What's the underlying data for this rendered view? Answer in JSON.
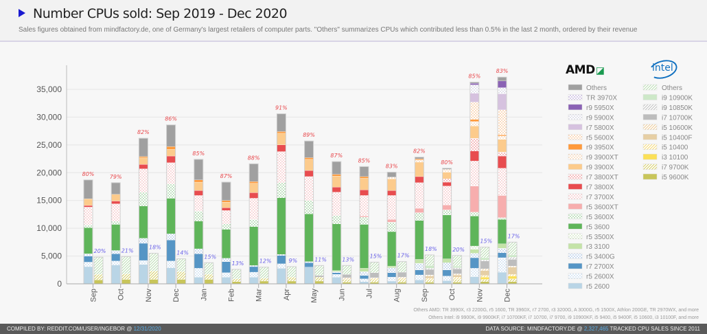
{
  "header": {
    "title": "Number CPUs sold: Sep 2019 - Dec 2020",
    "subtitle": "Sales figures obtained from mindfactory.de, one of Germany's largest retailers of computer parts. \"Others\" summarizes CPUs which contributed less than 0.5% in the last 2 month, ordered by their revenue"
  },
  "logos": {
    "amd": "AMD",
    "intel": "intel"
  },
  "notes": {
    "others_amd": "Others AMD: TR 3990X, r3 2200G, r5 1600, TR 3960X, r7 2700, r3 3200G, A 3000G, r5 1500X, Athlon 200GE, TR 2970WX, and more",
    "others_intel": "Others Intel: i9 9900K, i9 9900KF, i7 10700KF, i7 10700, i7 9700, i9 10900KF, i5 9400, i5 9400F, i5 10600, i3 10100F, and more"
  },
  "footer": {
    "compiled_prefix": "COMPILED BY: REDDIT.COM/USER/INGEBOR @",
    "compiled_date": "12/31/2020",
    "source_prefix": "DATA SOURCE: MINDFACTORY.DE @",
    "tracked_count": "2,327,465",
    "source_suffix": "TRACKED CPU SALES SINCE 2011"
  },
  "colors": {
    "amd_share": "#e8484c",
    "intel_share": "#6a62e8"
  },
  "chart_data": {
    "type": "bar",
    "stacked": true,
    "title": "Number CPUs sold: Sep 2019 - Dec 2020",
    "ylim": [
      0,
      37500
    ],
    "yticks": [
      {
        "v": 0,
        "label": "0"
      },
      {
        "v": 5000,
        "label": "5,000"
      },
      {
        "v": 10000,
        "label": "10,000"
      },
      {
        "v": 15000,
        "label": "15,000"
      },
      {
        "v": 20000,
        "label": "20,000"
      },
      {
        "v": 25000,
        "label": "25,000"
      },
      {
        "v": 30000,
        "label": "30,000"
      },
      {
        "v": 35000,
        "label": "35,000"
      }
    ],
    "grid": true,
    "legend_placement": "right",
    "amd_legend": [
      {
        "name": "Others",
        "color": "#a0a0a0",
        "pattern": "solid"
      },
      {
        "name": "TR 3970X",
        "color": "#9b7fc8",
        "pattern": "dots"
      },
      {
        "name": "r9 5950X",
        "color": "#8a62b4",
        "pattern": "solid"
      },
      {
        "name": "r9 5900X",
        "color": "#b8b8d0",
        "pattern": "dots"
      },
      {
        "name": "r7 5800X",
        "color": "#d6c2df",
        "pattern": "solid"
      },
      {
        "name": "r5 5600X",
        "color": "#f5a860",
        "pattern": "dots"
      },
      {
        "name": "r9 3950X",
        "color": "#ff9a3c",
        "pattern": "solid"
      },
      {
        "name": "r9 3900XT",
        "color": "#f2b880",
        "pattern": "dots"
      },
      {
        "name": "r9 3900X",
        "color": "#fccb8c",
        "pattern": "solid"
      },
      {
        "name": "r7 3800XT",
        "color": "#e85a5e",
        "pattern": "dots"
      },
      {
        "name": "r7 3800X",
        "color": "#e84c4f",
        "pattern": "solid"
      },
      {
        "name": "r7 3700X",
        "color": "#f0a0a4",
        "pattern": "dots"
      },
      {
        "name": "r5 3600XT",
        "color": "#f7aeae",
        "pattern": "solid"
      },
      {
        "name": "r5 3600X",
        "color": "#6cb86a",
        "pattern": "dots"
      },
      {
        "name": "r5 3600",
        "color": "#5fb55a",
        "pattern": "solid"
      },
      {
        "name": "r5 3500X",
        "color": "#b8d8a0",
        "pattern": "dots"
      },
      {
        "name": "r3 3100",
        "color": "#c4e3a8",
        "pattern": "solid"
      },
      {
        "name": "r5 3400G",
        "color": "#80a8d8",
        "pattern": "dots"
      },
      {
        "name": "r7 2700X",
        "color": "#5595c5",
        "pattern": "solid"
      },
      {
        "name": "r5 2600X",
        "color": "#a8c8e8",
        "pattern": "dots"
      },
      {
        "name": "r5 2600",
        "color": "#b9d5e6",
        "pattern": "solid"
      }
    ],
    "intel_legend": [
      {
        "name": "Others",
        "color": "#b8dcb0",
        "pattern": "hatch"
      },
      {
        "name": "i9 10900K",
        "color": "#cde8c8",
        "pattern": "solid"
      },
      {
        "name": "i9 10850K",
        "color": "#bdbdbd",
        "pattern": "hatch"
      },
      {
        "name": "i7 10700K",
        "color": "#bdbdbd",
        "pattern": "solid"
      },
      {
        "name": "i5 10600K",
        "color": "#ecc890",
        "pattern": "hatch"
      },
      {
        "name": "i5 10400F",
        "color": "#e6cfa5",
        "pattern": "solid"
      },
      {
        "name": "i5 10400",
        "color": "#f5d870",
        "pattern": "hatch"
      },
      {
        "name": "i3 10100",
        "color": "#fbe058",
        "pattern": "solid"
      },
      {
        "name": "i7 9700K",
        "color": "#d4cc60",
        "pattern": "hatch"
      },
      {
        "name": "i5 9600K",
        "color": "#c8c55a",
        "pattern": "solid"
      }
    ],
    "months": [
      {
        "label": "Sep",
        "amd_share": "80%",
        "intel_share": "20%",
        "amd": {
          "r5 2600": 3100,
          "r5 2600X": 800,
          "r7 2700X": 1100,
          "r5 3400G": 400,
          "r5 3600": 4700,
          "r5 3600X": 500,
          "r7 3700X": 3200,
          "r7 3800X": 300,
          "r9 3900X": 1200,
          "Others": 3400
        },
        "intel": {
          "i5 9600K": 700,
          "i7 9700K": 1000,
          "Others": 3100
        }
      },
      {
        "label": "Oct",
        "amd_share": "79%",
        "intel_share": "21%",
        "amd": {
          "r5 2600": 3400,
          "r5 2600X": 700,
          "r7 2700X": 1300,
          "r5 3400G": 600,
          "r5 3600": 4700,
          "r5 3600X": 600,
          "r7 3700X": 3100,
          "r7 3800X": 500,
          "r9 3900X": 1200,
          "Others": 2100
        },
        "intel": {
          "i5 9600K": 800,
          "i7 9700K": 1000,
          "Others": 3100
        }
      },
      {
        "label": "Nov",
        "amd_share": "82%",
        "intel_share": "18%",
        "amd": {
          "r5 2600": 3500,
          "r5 2600X": 700,
          "r7 2700X": 3100,
          "r5 3400G": 900,
          "r5 3600": 5800,
          "r5 3600X": 2500,
          "r7 3700X": 4200,
          "r7 3800X": 800,
          "r9 3900X": 1200,
          "r9 3950X": 200,
          "Others": 3300
        },
        "intel": {
          "i5 9600K": 800,
          "i7 9700K": 1500,
          "Others": 3200
        }
      },
      {
        "label": "Dec",
        "amd_share": "86%",
        "intel_share": "14%",
        "amd": {
          "r5 2600": 2900,
          "r5 2600X": 1200,
          "r7 2700X": 3800,
          "r5 3400G": 1100,
          "r5 3600": 6400,
          "r5 3600X": 2600,
          "r7 3700X": 3800,
          "r7 3800X": 1200,
          "r9 3900X": 1200,
          "r9 3950X": 500,
          "Others": 3900
        },
        "intel": {
          "i5 9600K": 800,
          "i7 9700K": 1400,
          "Others": 2300
        }
      },
      {
        "label": "Jan",
        "amd_share": "85%",
        "intel_share": "15%",
        "amd": {
          "r5 2600": 1200,
          "r5 2600X": 1600,
          "r7 2700X": 2600,
          "r5 3400G": 900,
          "r5 3600": 5000,
          "r5 3600X": 1800,
          "r7 3700X": 2800,
          "r7 3800X": 900,
          "r9 3900X": 1500,
          "r9 3950X": 400,
          "Others": 3700
        },
        "intel": {
          "i5 9600K": 800,
          "i7 9700K": 900,
          "Others": 2100
        }
      },
      {
        "label": "Feb",
        "amd_share": "87%",
        "intel_share": "13%",
        "amd": {
          "r5 2600": 1200,
          "r5 2600X": 800,
          "r7 2700X": 2000,
          "r5 3400G": 600,
          "r5 3600": 5200,
          "r5 3600X": 1000,
          "r7 3700X": 2400,
          "r7 3800X": 500,
          "r9 3900X": 1000,
          "r9 3950X": 300,
          "Others": 3300
        },
        "intel": {
          "i5 9600K": 400,
          "i7 9700K": 500,
          "Others": 1700
        }
      },
      {
        "label": "Mar",
        "amd_share": "88%",
        "intel_share": "12%",
        "amd": {
          "r5 2600": 1200,
          "r5 2600X": 900,
          "r7 2700X": 1000,
          "r5 3400G": 200,
          "r5 3600": 7000,
          "r5 3600X": 1300,
          "r7 3700X": 3800,
          "r7 3800X": 1000,
          "r9 3900X": 1700,
          "r9 3950X": 300,
          "Others": 3200
        },
        "intel": {
          "i5 9600K": 500,
          "i7 9700K": 500,
          "Others": 2000
        }
      },
      {
        "label": "Apr",
        "amd_share": "91%",
        "intel_share": "9%",
        "amd": {
          "r5 2600": 2800,
          "r5 2600X": 800,
          "r7 2700X": 1500,
          "r5 3400G": 200,
          "r5 3600": 10200,
          "r5 3600X": 2700,
          "r7 3700X": 5600,
          "r7 3800X": 1200,
          "r9 3900X": 2100,
          "r9 3950X": 300,
          "Others": 3200
        },
        "intel": {
          "i5 9600K": 500,
          "i7 9700K": 700,
          "Others": 1900
        }
      },
      {
        "label": "May",
        "amd_share": "89%",
        "intel_share": "11%",
        "amd": {
          "r5 2600": 3000,
          "r7 2700X": 800,
          "r5 3400G": 200,
          "r5 3600": 8600,
          "r5 3600X": 2400,
          "r7 3700X": 4300,
          "r7 3800X": 1100,
          "r9 3900X": 2000,
          "r9 3950X": 300,
          "Others": 3000
        },
        "intel": {
          "i5 9600K": 500,
          "i7 9700K": 700,
          "i7 10700K": 300,
          "Others": 1800
        }
      },
      {
        "label": "Jun",
        "amd_share": "87%",
        "intel_share": "13%",
        "amd": {
          "r5 2600": 1200,
          "r5 2600X": 500,
          "r7 2700X": 300,
          "r5 3400G": 200,
          "r3 3100": 200,
          "r5 3600": 8400,
          "r5 3600X": 1500,
          "r7 3700X": 4200,
          "r7 3800X": 900,
          "r9 3900X": 2000,
          "r9 3950X": 300,
          "Others": 2300
        },
        "intel": {
          "i5 9600K": 300,
          "i7 9700K": 500,
          "i5 10600K": 300,
          "i7 10700K": 600,
          "Others": 1600
        }
      },
      {
        "label": "Jul",
        "amd_share": "85%",
        "intel_share": "15%",
        "amd": {
          "r5 2600": 400,
          "r5 2600X": 500,
          "r7 2700X": 600,
          "r5 3400G": 700,
          "r3 3100": 600,
          "r5 3600": 7900,
          "r5 3600X": 1300,
          "r5 3600XT": 200,
          "r7 3700X": 3700,
          "r7 3800X": 1000,
          "r9 3900X": 2100,
          "r9 3950X": 300,
          "Others": 1800
        },
        "intel": {
          "i5 9600K": 300,
          "i7 9700K": 400,
          "i5 10400": 300,
          "i5 10600K": 100,
          "i7 10700K": 900,
          "Others": 1900
        }
      },
      {
        "label": "Aug",
        "amd_share": "83%",
        "intel_share": "17%",
        "amd": {
          "r5 2600": 500,
          "r5 2600X": 700,
          "r7 2700X": 800,
          "r5 3400G": 900,
          "r3 3100": 300,
          "r5 3600": 6200,
          "r5 3600X": 1700,
          "r5 3600XT": 500,
          "r7 3700X": 4300,
          "r7 3800X": 900,
          "r9 3900X": 2100,
          "r9 3900XT": 300,
          "Others": 900
        },
        "intel": {
          "i5 9600K": 300,
          "i7 9700K": 400,
          "i5 10400": 300,
          "i5 10600K": 200,
          "i7 10700K": 900,
          "Others": 1900
        }
      },
      {
        "label": "Sep",
        "amd_share": "82%",
        "intel_share": "18%",
        "amd": {
          "r5 2600": 700,
          "r5 2600X": 900,
          "r7 2700X": 900,
          "r5 3400G": 1200,
          "r3 3100": 700,
          "r5 3600": 7000,
          "r5 3600X": 1400,
          "r5 3600XT": 800,
          "r7 3700X": 4600,
          "r7 3800X": 1100,
          "r9 3900X": 2600,
          "r9 3900XT": 400,
          "r9 3950X": 200,
          "Others": 300
        },
        "intel": {
          "i5 9600K": 300,
          "i7 9700K": 400,
          "i5 10400": 300,
          "i5 10400F": 400,
          "i5 10600K": 200,
          "i7 10700K": 1000,
          "i9 10850K": 200,
          "i9 10900K": 500,
          "Others": 1900
        }
      },
      {
        "label": "Oct",
        "amd_share": "80%",
        "intel_share": "20%",
        "amd": {
          "r5 2600": 600,
          "r5 2600X": 800,
          "r7 2700X": 1100,
          "r5 3400G": 1300,
          "r3 3100": 700,
          "r5 3600": 7900,
          "r5 3600X": 900,
          "r5 3600XT": 900,
          "r7 3700X": 3400,
          "r7 3800X": 700,
          "r7 3800XT": 600,
          "r9 3900X": 1200,
          "r9 3900XT": 300,
          "r5 5600X": 200,
          "Others": 200
        },
        "intel": {
          "i5 9600K": 300,
          "i7 9700K": 500,
          "i5 10400": 400,
          "i5 10400F": 400,
          "i5 10600K": 200,
          "i7 10700K": 900,
          "i9 10850K": 200,
          "i9 10900K": 300,
          "Others": 1900
        }
      },
      {
        "label": "Nov",
        "amd_share": "85%",
        "intel_share": "15%",
        "amd": {
          "r5 2600": 1300,
          "r5 2600X": 1500,
          "r7 2700X": 1900,
          "r5 3400G": 800,
          "r3 3100": 700,
          "r5 3500X": 600,
          "r5 3600": 5400,
          "r5 3600X": 700,
          "r5 3600XT": 4700,
          "r7 3700X": 4500,
          "r7 3800X": 1800,
          "r7 3800XT": 2300,
          "r9 3900X": 2200,
          "r9 3900XT": 800,
          "r9 3950X": 400,
          "r5 5600X": 3100,
          "r7 5800X": 1600,
          "r9 5900X": 1500,
          "r9 5950X": 300,
          "Others": 200
        },
        "intel": {
          "i5 9600K": 400,
          "i7 9700K": 400,
          "i3 10100": 400,
          "i5 10400": 300,
          "i5 10400F": 900,
          "i5 10600K": 300,
          "i7 10700K": 1400,
          "i9 10850K": 200,
          "i9 10900K": 400,
          "Others": 1900
        }
      },
      {
        "label": "Dec",
        "amd_share": "83%",
        "intel_share": "17%",
        "amd": {
          "r5 2600": 2100,
          "r5 2600X": 2600,
          "r7 2700X": 900,
          "r5 3400G": 800,
          "r3 3100": 800,
          "r5 3600": 4400,
          "r5 3600X": 300,
          "r5 3600XT": 4000,
          "r7 3700X": 4900,
          "r7 3800X": 2200,
          "r7 3800XT": 700,
          "r9 3900X": 2300,
          "r9 3900XT": 600,
          "r9 3950X": 200,
          "r5 5600X": 4500,
          "r7 5800X": 2900,
          "r9 5900X": 1100,
          "r9 5950X": 1200,
          "Others": 700
        },
        "intel": {
          "i5 9600K": 400,
          "i7 9700K": 500,
          "i3 10100": 500,
          "i5 10400": 300,
          "i5 10400F": 1300,
          "i5 10600K": 200,
          "i7 10700K": 1200,
          "i9 10850K": 400,
          "i9 10900K": 400,
          "Others": 2300
        }
      }
    ]
  }
}
